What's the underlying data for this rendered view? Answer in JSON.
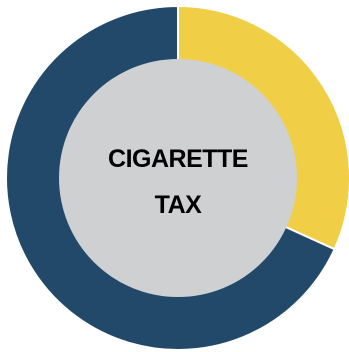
{
  "chart_data": {
    "type": "pie",
    "variant": "donut",
    "center_label_lines": [
      "CIGARETTE",
      "TAX"
    ],
    "slices": [
      {
        "value": 0.318,
        "color": "#F0CF47"
      },
      {
        "value": 0.682,
        "color": "#22496A"
      }
    ],
    "center_fill": "#CFD0D2",
    "separator_color": "#ffffff"
  }
}
